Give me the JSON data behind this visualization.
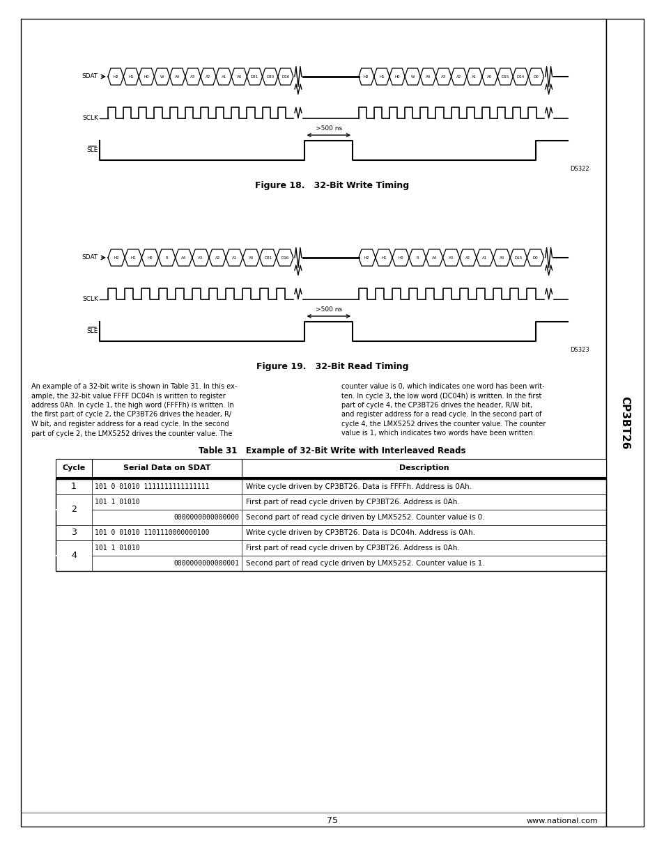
{
  "page_bg": "#ffffff",
  "fig18_title": "Figure 18.   32-Bit Write Timing",
  "fig19_title": "Figure 19.   32-Bit Read Timing",
  "ds322": "DS322",
  "ds323": "DS323",
  "table_title": "Table 31   Example of 32-Bit Write with Interleaved Reads",
  "col_headers": [
    "Cycle",
    "Serial Data on SDAT",
    "Description"
  ],
  "body_text_left": [
    "An example of a 32-bit write is shown in Table 31. In this ex-",
    "ample, the 32-bit value FFFF DC04h is written to register",
    "address 0Ah. In cycle 1, the high word (FFFFh) is written. In",
    "the first part of cycle 2, the CP3BT26 drives the header, R/",
    "W bit, and register address for a read cycle. In the second",
    "part of cycle 2, the LMX5252 drives the counter value. The"
  ],
  "body_text_right": [
    "counter value is 0, which indicates one word has been writ-",
    "ten. In cycle 3, the low word (DC04h) is written. In the first",
    "part of cycle 4, the CP3BT26 drives the header, R/W bit,",
    "and register address for a read cycle. In the second part of",
    "cycle 4, the LMX5252 drives the counter value. The counter",
    "value is 1, which indicates two words have been written."
  ],
  "page_num": "75",
  "website": "www.national.com",
  "sidebar_text": "CP3BT26",
  "fig18_labels1": [
    "H2",
    "H1",
    "H0",
    "W",
    "A4",
    "A3",
    "A2",
    "A1",
    "A0",
    "D31",
    "D30",
    "D16"
  ],
  "fig18_labels2": [
    "H2",
    "H1",
    "H0",
    "W",
    "A4",
    "A3",
    "A2",
    "A1",
    "A0",
    "D15",
    "D14",
    "D0"
  ],
  "fig19_labels1": [
    "H2",
    "H1",
    "H0",
    "R",
    "A4",
    "A3",
    "A2",
    "A1",
    "A0",
    "D31",
    "D16"
  ],
  "fig19_labels2": [
    "H2",
    "H1",
    "H0",
    "R",
    "A4",
    "A3",
    "A2",
    "A1",
    "A0",
    "D15",
    "D0"
  ],
  "table_rows": [
    {
      "cycle": "1",
      "span": 1,
      "sdat": "101 0 01010 1111111111111111",
      "desc": "Write cycle driven by CP3BT26. Data is FFFFh. Address is 0Ah."
    },
    {
      "cycle": "2",
      "span": 2,
      "sdat": "101 1 01010",
      "desc": "First part of read cycle driven by CP3BT26. Address is 0Ah."
    },
    {
      "cycle": null,
      "span": 1,
      "sdat": "0000000000000000",
      "desc": "Second part of read cycle driven by LMX5252. Counter value is 0.",
      "right_align": true
    },
    {
      "cycle": "3",
      "span": 1,
      "sdat": "101 0 01010 1101110000000100",
      "desc": "Write cycle driven by CP3BT26. Data is DC04h. Address is 0Ah."
    },
    {
      "cycle": "4",
      "span": 2,
      "sdat": "101 1 01010",
      "desc": "First part of read cycle driven by CP3BT26. Address is 0Ah."
    },
    {
      "cycle": null,
      "span": 1,
      "sdat": "0000000000000001",
      "desc": "Second part of read cycle driven by LMX5252. Counter value is 1.",
      "right_align": true
    }
  ]
}
